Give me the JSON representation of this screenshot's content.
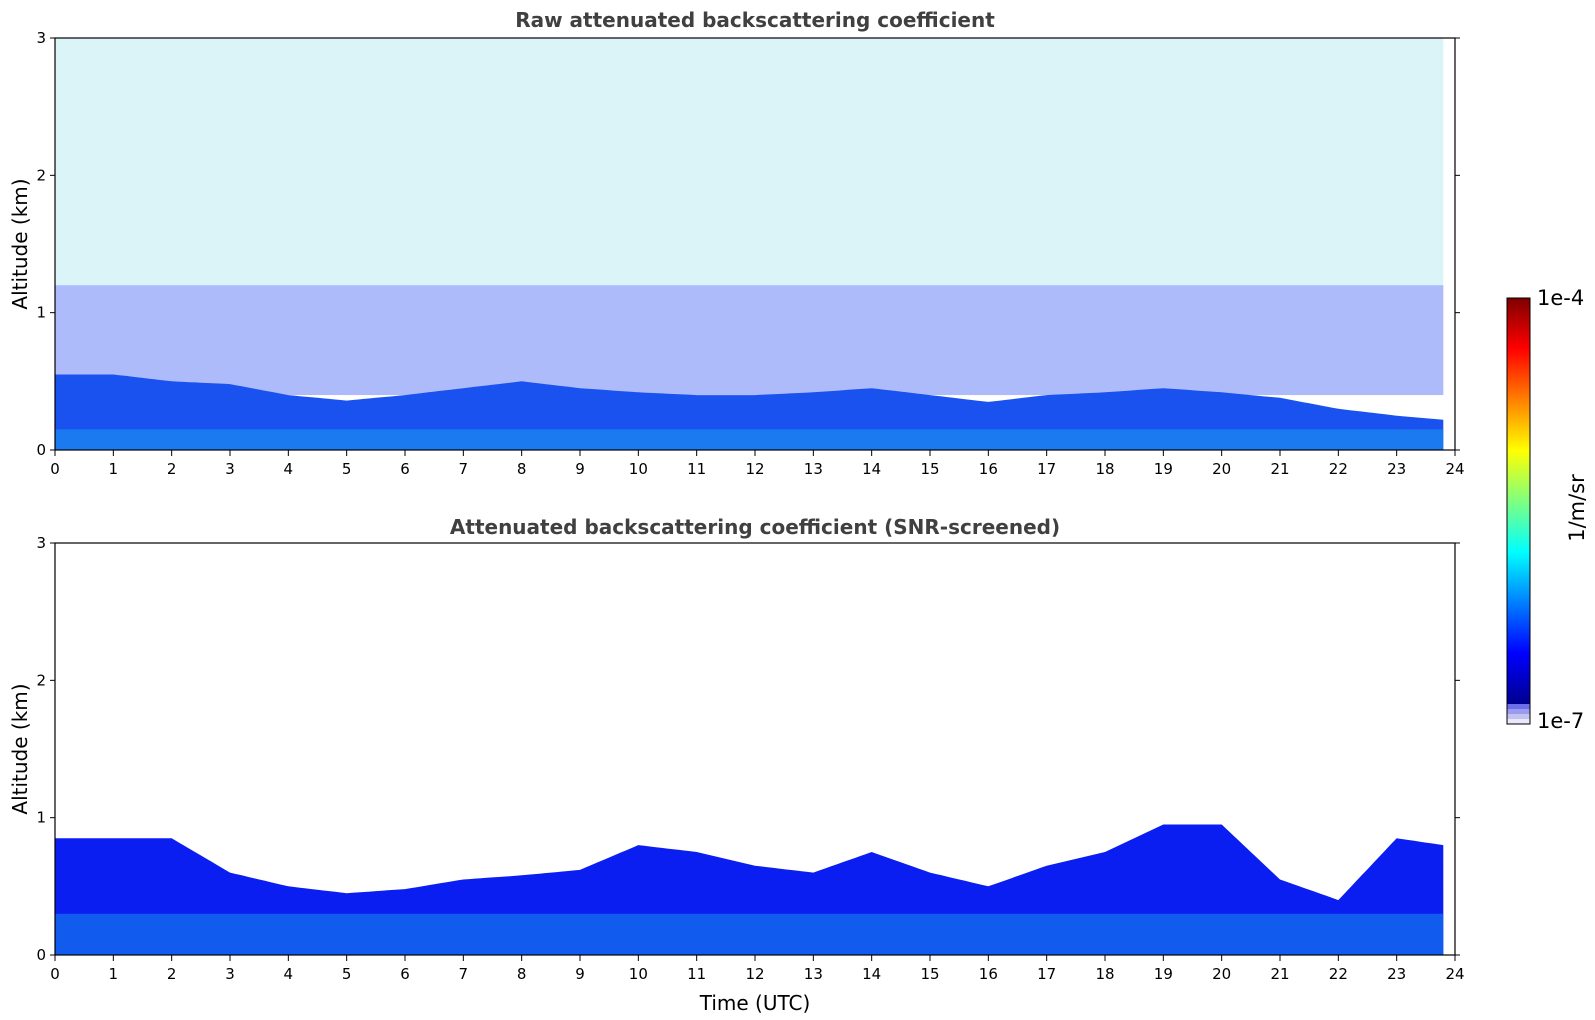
{
  "chart_data": [
    {
      "type": "heatmap",
      "title": "Raw attenuated backscattering coefficient",
      "xlabel": "",
      "ylabel": "Altitude (km)",
      "xlim": [
        0,
        24
      ],
      "ylim": [
        0,
        3
      ],
      "xticks": [
        "0",
        "1",
        "2",
        "3",
        "4",
        "5",
        "6",
        "7",
        "8",
        "9",
        "10",
        "11",
        "12",
        "13",
        "14",
        "15",
        "16",
        "17",
        "18",
        "19",
        "20",
        "21",
        "22",
        "23",
        "24"
      ],
      "yticks": [
        "0",
        "1",
        "2",
        "3"
      ],
      "x_time_hours": [
        0,
        1,
        2,
        3,
        4,
        5,
        6,
        7,
        8,
        9,
        10,
        11,
        12,
        13,
        14,
        15,
        16,
        17,
        18,
        19,
        20,
        21,
        22,
        23,
        23.8
      ],
      "dense_layer_top_km": [
        0.55,
        0.55,
        0.5,
        0.48,
        0.4,
        0.36,
        0.4,
        0.45,
        0.5,
        0.45,
        0.42,
        0.4,
        0.4,
        0.42,
        0.45,
        0.4,
        0.35,
        0.4,
        0.42,
        0.45,
        0.42,
        0.38,
        0.3,
        0.25,
        0.22
      ],
      "noise_region_top_km": 3.0,
      "data_end_time": 23.8
    },
    {
      "type": "heatmap",
      "title": "Attenuated backscattering coefficient (SNR-screened)",
      "xlabel": "Time (UTC)",
      "ylabel": "Altitude (km)",
      "xlim": [
        0,
        24
      ],
      "ylim": [
        0,
        3
      ],
      "xticks": [
        "0",
        "1",
        "2",
        "3",
        "4",
        "5",
        "6",
        "7",
        "8",
        "9",
        "10",
        "11",
        "12",
        "13",
        "14",
        "15",
        "16",
        "17",
        "18",
        "19",
        "20",
        "21",
        "22",
        "23",
        "24"
      ],
      "yticks": [
        "0",
        "1",
        "2",
        "3"
      ],
      "x_time_hours": [
        0,
        1,
        2,
        3,
        4,
        5,
        6,
        7,
        8,
        9,
        10,
        11,
        12,
        13,
        14,
        15,
        16,
        17,
        18,
        19,
        20,
        21,
        22,
        23,
        23.8
      ],
      "layer_top_km": [
        0.85,
        0.85,
        0.85,
        0.6,
        0.5,
        0.45,
        0.48,
        0.55,
        0.58,
        0.62,
        0.8,
        0.75,
        0.65,
        0.6,
        0.75,
        0.6,
        0.5,
        0.65,
        0.75,
        0.95,
        0.95,
        0.55,
        0.4,
        0.85,
        0.8
      ],
      "data_end_time": 23.8
    }
  ],
  "colorbar": {
    "min_label": "1e-7",
    "max_label": "1e-4",
    "unit_label": "1/m/sr",
    "colormap": "jet",
    "low_end_colors": [
      "#e8e8fa",
      "#c2c2f2",
      "#9a9aee",
      "#6e6eea"
    ]
  }
}
